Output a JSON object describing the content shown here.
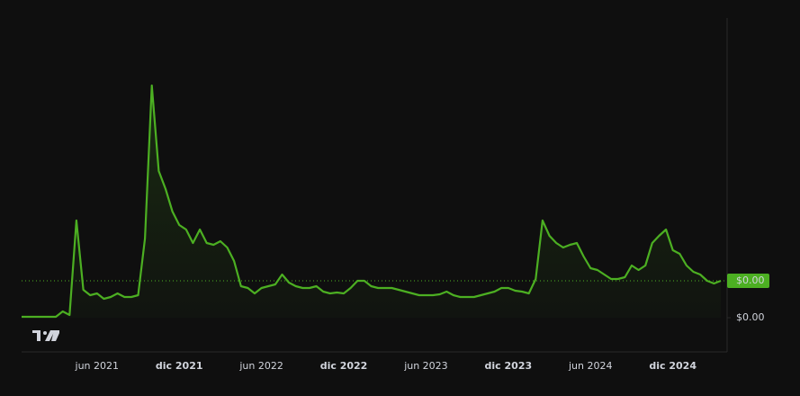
{
  "chart_data": {
    "type": "line",
    "categories": [
      null,
      null,
      null,
      null,
      null,
      null,
      null,
      null,
      null,
      null,
      null,
      "jun 2021",
      null,
      null,
      null,
      null,
      null,
      null,
      null,
      null,
      null,
      null,
      null,
      "dic 2021",
      null,
      null,
      null,
      null,
      null,
      null,
      null,
      null,
      null,
      null,
      null,
      "jun 2022",
      null,
      null,
      null,
      null,
      null,
      null,
      null,
      null,
      null,
      null,
      null,
      "dic 2022",
      null,
      null,
      null,
      null,
      null,
      null,
      null,
      null,
      null,
      null,
      null,
      "jun 2023",
      null,
      null,
      null,
      null,
      null,
      null,
      null,
      null,
      null,
      null,
      null,
      "dic 2023",
      null,
      null,
      null,
      null,
      null,
      null,
      null,
      null,
      null,
      null,
      null,
      "jun 2024",
      null,
      null,
      null,
      null,
      null,
      null,
      null,
      null,
      null,
      null,
      null,
      "dic 2024",
      null,
      null,
      null,
      null,
      null,
      null,
      null
    ],
    "values": [
      2.5e-06,
      2.5e-06,
      2.5e-06,
      2.5e-06,
      2.5e-06,
      2.5e-06,
      1.75e-05,
      7.5e-06,
      0.00027,
      7.75e-05,
      6.25e-05,
      6.75e-05,
      5.25e-05,
      5.75e-05,
      6.75e-05,
      5.75e-05,
      5.75e-05,
      6.25e-05,
      0.00022,
      0.000645,
      0.0004075,
      0.0003575,
      0.000295,
      0.0002575,
      0.000245,
      0.0002075,
      0.000245,
      0.0002075,
      0.0002025,
      0.0002125,
      0.000195,
      0.0001575,
      8.75e-05,
      8.25e-05,
      6.75e-05,
      8.25e-05,
      8.75e-05,
      9.25e-05,
      0.00012,
      9.75e-05,
      8.75e-05,
      8.25e-05,
      8.25e-05,
      8.75e-05,
      7.25e-05,
      6.75e-05,
      7e-05,
      6.75e-05,
      8.25e-05,
      0.0001025,
      0.0001025,
      8.75e-05,
      8.25e-05,
      8.25e-05,
      8.25e-05,
      7.75e-05,
      7.25e-05,
      6.75e-05,
      6.25e-05,
      6.25e-05,
      6.25e-05,
      6.5e-05,
      7.25e-05,
      6.25e-05,
      5.75e-05,
      5.75e-05,
      5.75e-05,
      6.25e-05,
      6.75e-05,
      7.25e-05,
      8.25e-05,
      8.25e-05,
      7.5e-05,
      7.25e-05,
      6.75e-05,
      0.0001075,
      0.00027,
      0.0002275,
      0.0002075,
      0.000195,
      0.0002025,
      0.0002075,
      0.00017,
      0.0001375,
      0.0001325,
      0.00012,
      0.0001075,
      0.0001075,
      0.0001125,
      0.000145,
      0.0001325,
      0.000145,
      0.0002075,
      0.0002275,
      0.000245,
      0.0001875,
      0.0001775,
      0.000145,
      0.0001275,
      0.00012,
      0.0001025,
      9.5e-05,
      0.0001025
    ],
    "color": "#4caf22",
    "ylim": [
      0,
      0.0008325
    ],
    "yticks": [
      {
        "value": 0,
        "label": "$0.00"
      }
    ],
    "last_price_label": "$0.00"
  }
}
